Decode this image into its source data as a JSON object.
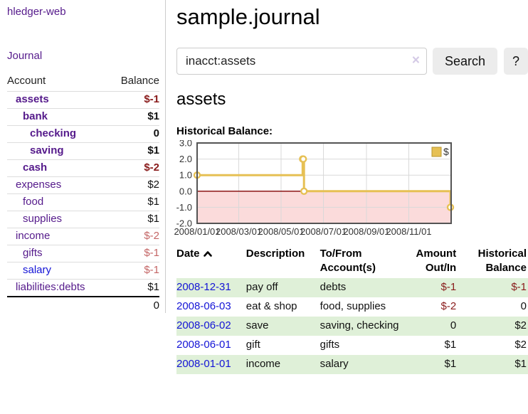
{
  "app": {
    "title": "hledger-web"
  },
  "colors": {
    "link_purple": "#551a8b",
    "link_blue": "#1414d6",
    "negative_strong": "#891b1b",
    "negative_soft": "#c46666",
    "row_stripe_green": "#dff0d8",
    "button_bg": "#ececec"
  },
  "sidebar": {
    "journal_link": "Journal",
    "accounts_table": {
      "headers": {
        "account": "Account",
        "balance": "Balance"
      },
      "rows": [
        {
          "name": "assets",
          "balance": "$-1",
          "depth": 1,
          "bold": true,
          "negative": "strong"
        },
        {
          "name": "bank",
          "balance": "$1",
          "depth": 2,
          "bold": true
        },
        {
          "name": "checking",
          "balance": "0",
          "depth": 3,
          "bold": true
        },
        {
          "name": "saving",
          "balance": "$1",
          "depth": 3,
          "bold": true
        },
        {
          "name": "cash",
          "balance": "$-2",
          "depth": 2,
          "bold": true,
          "negative": "strong"
        },
        {
          "name": "expenses",
          "balance": "$2",
          "depth": 1
        },
        {
          "name": "food",
          "balance": "$1",
          "depth": 2
        },
        {
          "name": "supplies",
          "balance": "$1",
          "depth": 2
        },
        {
          "name": "income",
          "balance": "$-2",
          "depth": 1,
          "negative": "soft"
        },
        {
          "name": "gifts",
          "balance": "$-1",
          "depth": 2,
          "negative": "soft"
        },
        {
          "name": "salary",
          "balance": "$-1",
          "depth": 2,
          "negative": "soft",
          "link_style": "blue"
        },
        {
          "name": "liabilities:debts",
          "balance": "$1",
          "depth": 1
        }
      ],
      "total": "0"
    }
  },
  "header": {
    "title": "sample.journal"
  },
  "search": {
    "value": "inacct:assets",
    "clear_icon": "×",
    "button": "Search",
    "help_button": "?"
  },
  "account_page": {
    "heading": "assets",
    "chart_label": "Historical Balance:"
  },
  "chart_data": {
    "type": "line",
    "step": true,
    "title": "Historical Balance",
    "series": [
      {
        "name": "$",
        "color": "#e6c054",
        "points": [
          [
            "2008-01-01",
            1
          ],
          [
            "2008-06-01",
            2
          ],
          [
            "2008-06-02",
            2
          ],
          [
            "2008-06-03",
            0
          ],
          [
            "2008-12-31",
            -1
          ]
        ]
      }
    ],
    "ylim": [
      -2,
      3
    ],
    "ytick_interval": 1,
    "yticks": [
      "3.0",
      "2.0",
      "1.0",
      "0.0",
      "-1.0",
      "-2.0"
    ],
    "xticks": [
      {
        "label": "2008/01/01",
        "date": "2008-01-01",
        "grid": false
      },
      {
        "label": "2008/03/01",
        "date": "2008-03-01",
        "grid": true
      },
      {
        "label": "2008/05/01",
        "date": "2008-05-01",
        "grid": true
      },
      {
        "label": "2008/07/01",
        "date": "2008-07-01",
        "grid": true
      },
      {
        "label": "2008/09/01",
        "date": "2008-09-01",
        "grid": true
      },
      {
        "label": "2008/11/01",
        "date": "2008-11-01",
        "grid": true
      }
    ],
    "x_range": [
      "2008-01-01",
      "2009-01-01"
    ],
    "legend": {
      "label": "$",
      "position": "top-right"
    },
    "grid": true,
    "negative_region_color": "#fbdbdb",
    "zero_line_color": "#800000",
    "gridline_color": "#d9d9d9",
    "border_color": "#545454"
  },
  "register_table": {
    "headers": {
      "date": "Date",
      "description": "Description",
      "accounts": "To/From Account(s)",
      "amount": "Amount Out/In",
      "balance": "Historical Balance"
    },
    "rows": [
      {
        "date": "2008-12-31",
        "description": "pay off",
        "accounts": "debts",
        "amount": "$-1",
        "balance": "$-1",
        "amount_neg": true,
        "balance_neg": true
      },
      {
        "date": "2008-06-03",
        "description": "eat & shop",
        "accounts": "food, supplies",
        "amount": "$-2",
        "balance": "0",
        "amount_neg": true
      },
      {
        "date": "2008-06-02",
        "description": "save",
        "accounts": "saving, checking",
        "amount": "0",
        "balance": "$2"
      },
      {
        "date": "2008-06-01",
        "description": "gift",
        "accounts": "gifts",
        "amount": "$1",
        "balance": "$2"
      },
      {
        "date": "2008-01-01",
        "description": "income",
        "accounts": "salary",
        "amount": "$1",
        "balance": "$1"
      }
    ]
  }
}
